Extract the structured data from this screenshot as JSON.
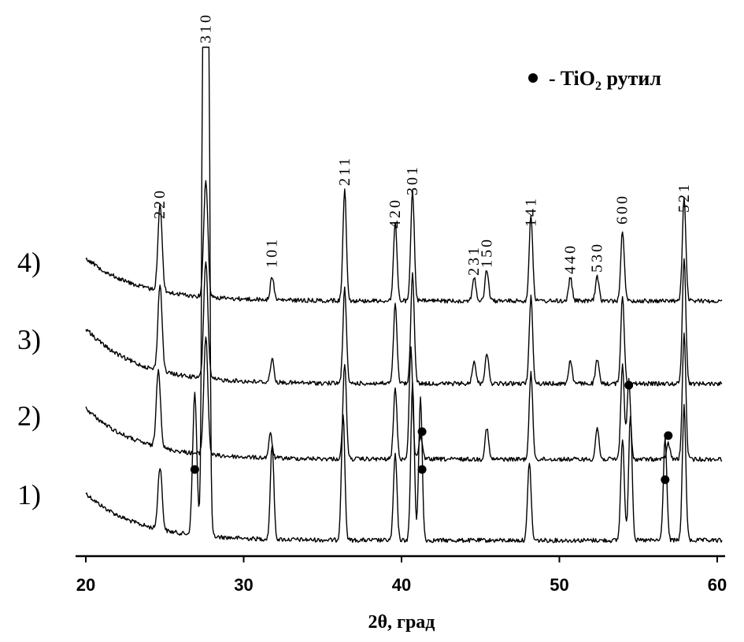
{
  "chart_data": {
    "type": "line",
    "xlabel": "2θ, град",
    "xlim": [
      19.6,
      60.5
    ],
    "x_ticks": [
      "20",
      "30",
      "40",
      "50",
      "60"
    ],
    "x_tick_values": [
      20,
      30,
      40,
      50,
      60
    ],
    "y_ticks": [],
    "grid": false,
    "legend": {
      "placement": "top-right",
      "marker": "•",
      "text_prefix": "- TiO",
      "text_sub": "2",
      "text_suffix": " рутил"
    },
    "series": [
      {
        "name": "1)",
        "peaks": [
          [
            24.7,
            8
          ],
          [
            26.9,
            18
          ],
          [
            27.6,
            300
          ],
          [
            31.8,
            12
          ],
          [
            36.3,
            16
          ],
          [
            39.6,
            11
          ],
          [
            40.7,
            20
          ],
          [
            41.2,
            18
          ],
          [
            48.1,
            10
          ],
          [
            54.0,
            13
          ],
          [
            54.5,
            16
          ],
          [
            56.7,
            13
          ],
          [
            57.9,
            17
          ]
        ]
      },
      {
        "name": "2)",
        "peaks": [
          [
            24.6,
            10
          ],
          [
            27.6,
            15
          ],
          [
            31.7,
            3
          ],
          [
            36.4,
            12
          ],
          [
            39.6,
            9
          ],
          [
            40.6,
            14
          ],
          [
            41.2,
            3
          ],
          [
            45.4,
            4
          ],
          [
            48.2,
            11
          ],
          [
            52.4,
            4
          ],
          [
            54.0,
            12
          ],
          [
            54.4,
            10
          ],
          [
            56.9,
            2
          ],
          [
            57.9,
            16
          ]
        ]
      },
      {
        "name": "3)",
        "peaks": [
          [
            24.7,
            11
          ],
          [
            27.6,
            15
          ],
          [
            31.8,
            3
          ],
          [
            36.4,
            12
          ],
          [
            39.6,
            10
          ],
          [
            40.7,
            14
          ],
          [
            44.6,
            3
          ],
          [
            45.4,
            4
          ],
          [
            48.2,
            11
          ],
          [
            50.7,
            3
          ],
          [
            52.4,
            3
          ],
          [
            54.0,
            11
          ],
          [
            57.9,
            16
          ]
        ]
      },
      {
        "name": "4)",
        "peaks": [
          [
            24.7,
            11
          ],
          [
            27.6,
            15
          ],
          [
            31.8,
            3
          ],
          [
            36.4,
            14
          ],
          [
            39.6,
            10
          ],
          [
            40.7,
            14
          ],
          [
            44.6,
            3
          ],
          [
            45.4,
            4
          ],
          [
            48.2,
            11
          ],
          [
            50.7,
            3
          ],
          [
            52.4,
            3
          ],
          [
            54.0,
            9
          ],
          [
            57.9,
            13
          ]
        ]
      }
    ],
    "rutile_markers": [
      {
        "series": "1)",
        "x": 26.9
      },
      {
        "series": "1)",
        "x": 41.3
      },
      {
        "series": "1)",
        "x": 56.7
      },
      {
        "series": "2)",
        "x": 41.3
      },
      {
        "series": "2)",
        "x": 54.4
      },
      {
        "series": "2)",
        "x": 56.9
      }
    ],
    "peak_labels": [
      {
        "text": "220",
        "x": 24.7
      },
      {
        "text": "310",
        "x": 27.6
      },
      {
        "text": "101",
        "x": 31.8
      },
      {
        "text": "211",
        "x": 36.4
      },
      {
        "text": "420",
        "x": 39.6
      },
      {
        "text": "301",
        "x": 40.7
      },
      {
        "text": "231",
        "x": 44.6
      },
      {
        "text": "150",
        "x": 45.4
      },
      {
        "text": "141",
        "x": 48.2
      },
      {
        "text": "440",
        "x": 50.7
      },
      {
        "text": "530",
        "x": 52.4
      },
      {
        "text": "600",
        "x": 54.0
      },
      {
        "text": "521",
        "x": 57.9
      }
    ]
  }
}
